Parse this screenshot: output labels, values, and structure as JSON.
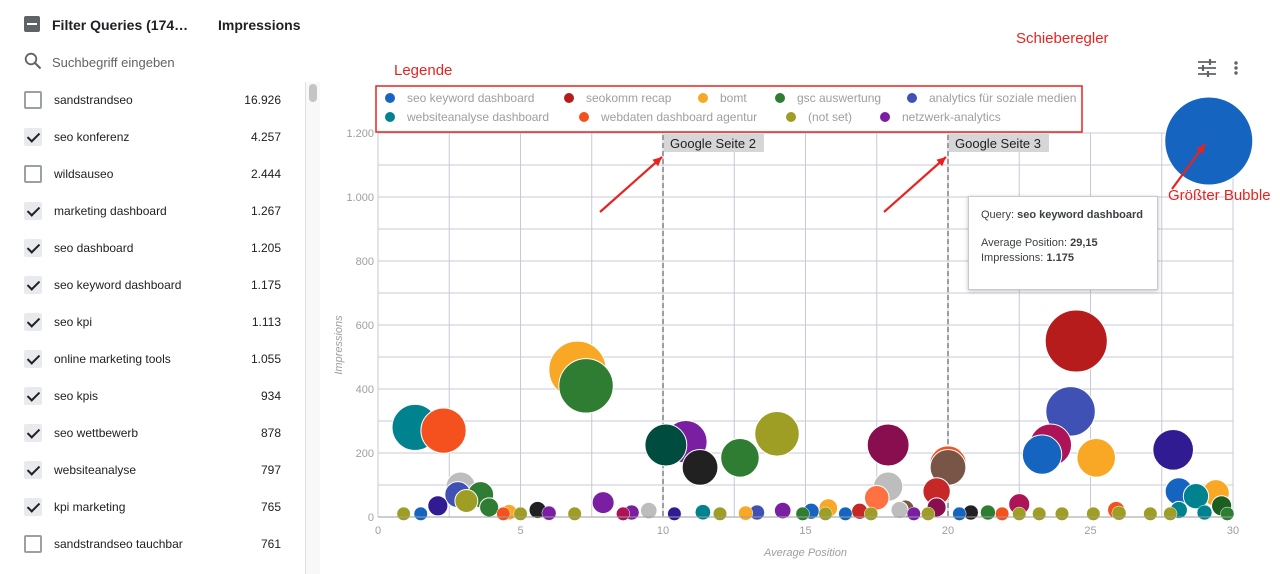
{
  "panel": {
    "title": "Filter Queries (174…",
    "metric_header": "Impressions",
    "search_placeholder": "Suchbegriff eingeben",
    "rows": [
      {
        "label": "sandstrandseo",
        "value": "16.926",
        "checked": false
      },
      {
        "label": "seo konferenz",
        "value": "4.257",
        "checked": true
      },
      {
        "label": "wildsauseo",
        "value": "2.444",
        "checked": false
      },
      {
        "label": "marketing dashboard",
        "value": "1.267",
        "checked": true
      },
      {
        "label": "seo dashboard",
        "value": "1.205",
        "checked": true
      },
      {
        "label": "seo keyword dashboard",
        "value": "1.175",
        "checked": true
      },
      {
        "label": "seo kpi",
        "value": "1.113",
        "checked": true
      },
      {
        "label": "online marketing tools",
        "value": "1.055",
        "checked": true
      },
      {
        "label": "seo kpis",
        "value": "934",
        "checked": true
      },
      {
        "label": "seo wettbewerb",
        "value": "878",
        "checked": true
      },
      {
        "label": "websiteanalyse",
        "value": "797",
        "checked": true
      },
      {
        "label": "kpi marketing",
        "value": "765",
        "checked": true
      },
      {
        "label": "sandstrandseo tauchbar",
        "value": "761",
        "checked": false
      }
    ]
  },
  "annotations": {
    "legend": "Legende",
    "slider": "Schieberegler",
    "biggest_bubble": "Größter Bubble"
  },
  "tooltip": {
    "query_label": "Query:",
    "query_value": "seo keyword dashboard",
    "position_label": "Average Position:",
    "position_value": "29,15",
    "impressions_label": "Impressions:",
    "impressions_value": "1.175"
  },
  "icons": {
    "search": "search-icon",
    "tune": "tune-icon",
    "more": "more-vert-icon"
  },
  "colors": {
    "accent": "#e8231f"
  },
  "chart_data": {
    "type": "scatter",
    "xlabel": "Average Position",
    "ylabel": "Impressions",
    "xlim": [
      0,
      30
    ],
    "ylim": [
      0,
      1200
    ],
    "xticks": [
      {
        "v": 0,
        "t": "0"
      },
      {
        "v": 5,
        "t": "5"
      },
      {
        "v": 10,
        "t": "10"
      },
      {
        "v": 15,
        "t": "15"
      },
      {
        "v": 20,
        "t": "20"
      },
      {
        "v": 25,
        "t": "25"
      },
      {
        "v": 30,
        "t": "30"
      }
    ],
    "yticks": [
      {
        "v": 0,
        "t": "0"
      },
      {
        "v": 200,
        "t": "200"
      },
      {
        "v": 400,
        "t": "400"
      },
      {
        "v": 600,
        "t": "600"
      },
      {
        "v": 800,
        "t": "800"
      },
      {
        "v": 1000,
        "t": "1.000"
      },
      {
        "v": 1200,
        "t": "1.200"
      }
    ],
    "grid": true,
    "legend_position": "top",
    "legend": [
      {
        "name": "seo keyword dashboard",
        "color": "#1565c0"
      },
      {
        "name": "seokomm recap",
        "color": "#b71c1c"
      },
      {
        "name": "bomt",
        "color": "#f9a825"
      },
      {
        "name": "gsc auswertung",
        "color": "#2e7d32"
      },
      {
        "name": "analytics für soziale medien",
        "color": "#3f51b5"
      },
      {
        "name": "websiteanalyse dashboard",
        "color": "#00838f"
      },
      {
        "name": "webdaten dashboard agentur",
        "color": "#f4511e"
      },
      {
        "name": "(not set)",
        "color": "#9e9d24"
      },
      {
        "name": "netzwerk-analytics",
        "color": "#7b1fa2"
      }
    ],
    "reference_lines": [
      {
        "x": 10,
        "label": "Google Seite 2"
      },
      {
        "x": 20,
        "label": "Google Seite 3"
      }
    ],
    "points": [
      {
        "x": 29.15,
        "y": 1175,
        "z": 1175,
        "c": "#1565c0"
      },
      {
        "x": 24.5,
        "y": 550,
        "z": 550,
        "c": "#b71c1c"
      },
      {
        "x": 7.0,
        "y": 460,
        "z": 460,
        "c": "#f9a825"
      },
      {
        "x": 7.3,
        "y": 410,
        "z": 410,
        "c": "#2e7d32"
      },
      {
        "x": 24.3,
        "y": 330,
        "z": 330,
        "c": "#3f51b5"
      },
      {
        "x": 1.3,
        "y": 280,
        "z": 280,
        "c": "#00838f"
      },
      {
        "x": 2.3,
        "y": 270,
        "z": 270,
        "c": "#f4511e"
      },
      {
        "x": 14.0,
        "y": 260,
        "z": 260,
        "c": "#9e9d24"
      },
      {
        "x": 10.8,
        "y": 235,
        "z": 235,
        "c": "#7b1fa2"
      },
      {
        "x": 10.1,
        "y": 225,
        "z": 225,
        "c": "#004d40"
      },
      {
        "x": 17.9,
        "y": 225,
        "z": 225,
        "c": "#880e4f"
      },
      {
        "x": 23.6,
        "y": 225,
        "z": 225,
        "c": "#ad1457"
      },
      {
        "x": 27.9,
        "y": 210,
        "z": 210,
        "c": "#311b92"
      },
      {
        "x": 23.3,
        "y": 195,
        "z": 195,
        "c": "#1565c0"
      },
      {
        "x": 25.2,
        "y": 185,
        "z": 185,
        "c": "#f9a825"
      },
      {
        "x": 12.7,
        "y": 185,
        "z": 185,
        "c": "#2e7d32"
      },
      {
        "x": 20.0,
        "y": 165,
        "z": 165,
        "c": "#f4511e"
      },
      {
        "x": 20.0,
        "y": 155,
        "z": 155,
        "c": "#795548"
      },
      {
        "x": 11.3,
        "y": 155,
        "z": 155,
        "c": "#212121"
      },
      {
        "x": 17.9,
        "y": 95,
        "z": 95,
        "c": "#bdbdbd"
      },
      {
        "x": 2.9,
        "y": 95,
        "z": 95,
        "c": "#bdbdbd"
      },
      {
        "x": 19.6,
        "y": 80,
        "z": 80,
        "c": "#c62828"
      },
      {
        "x": 28.1,
        "y": 80,
        "z": 80,
        "c": "#1565c0"
      },
      {
        "x": 29.4,
        "y": 75,
        "z": 75,
        "c": "#f9a825"
      },
      {
        "x": 2.8,
        "y": 70,
        "z": 70,
        "c": "#3f51b5"
      },
      {
        "x": 3.6,
        "y": 70,
        "z": 70,
        "c": "#2e7d32"
      },
      {
        "x": 28.7,
        "y": 65,
        "z": 65,
        "c": "#00838f"
      },
      {
        "x": 17.5,
        "y": 60,
        "z": 60,
        "c": "#ff7043"
      },
      {
        "x": 3.1,
        "y": 50,
        "z": 50,
        "c": "#9e9d24"
      },
      {
        "x": 7.9,
        "y": 45,
        "z": 45,
        "c": "#7b1fa2"
      },
      {
        "x": 22.5,
        "y": 40,
        "z": 40,
        "c": "#ad1457"
      },
      {
        "x": 2.1,
        "y": 35,
        "z": 35,
        "c": "#311b92"
      },
      {
        "x": 29.6,
        "y": 35,
        "z": 35,
        "c": "#1b5e20"
      },
      {
        "x": 3.9,
        "y": 30,
        "z": 30,
        "c": "#2e7d32"
      },
      {
        "x": 19.6,
        "y": 30,
        "z": 30,
        "c": "#880e4f"
      },
      {
        "x": 15.8,
        "y": 28,
        "z": 28,
        "c": "#f9a825"
      },
      {
        "x": 18.5,
        "y": 25,
        "z": 25,
        "c": "#795548"
      },
      {
        "x": 18.3,
        "y": 22,
        "z": 22,
        "c": "#bdbdbd"
      },
      {
        "x": 28.1,
        "y": 22,
        "z": 22,
        "c": "#00838f"
      },
      {
        "x": 5.6,
        "y": 22,
        "z": 22,
        "c": "#212121"
      },
      {
        "x": 25.9,
        "y": 22,
        "z": 22,
        "c": "#f4511e"
      },
      {
        "x": 14.2,
        "y": 20,
        "z": 20,
        "c": "#7b1fa2"
      },
      {
        "x": 9.5,
        "y": 20,
        "z": 20,
        "c": "#bdbdbd"
      },
      {
        "x": 16.9,
        "y": 18,
        "z": 18,
        "c": "#c62828"
      },
      {
        "x": 15.2,
        "y": 18,
        "z": 18,
        "c": "#1565c0"
      },
      {
        "x": 11.4,
        "y": 15,
        "z": 15,
        "c": "#00838f"
      },
      {
        "x": 4.6,
        "y": 15,
        "z": 15,
        "c": "#f9a825"
      },
      {
        "x": 8.9,
        "y": 14,
        "z": 14,
        "c": "#7b1fa2"
      },
      {
        "x": 13.3,
        "y": 14,
        "z": 14,
        "c": "#3f51b5"
      },
      {
        "x": 20.8,
        "y": 14,
        "z": 14,
        "c": "#212121"
      },
      {
        "x": 21.4,
        "y": 14,
        "z": 14,
        "c": "#2e7d32"
      },
      {
        "x": 29.0,
        "y": 14,
        "z": 14,
        "c": "#00838f"
      },
      {
        "x": 12.9,
        "y": 12,
        "z": 12,
        "c": "#f9a825"
      },
      {
        "x": 6.0,
        "y": 12,
        "z": 12,
        "c": "#7b1fa2"
      },
      {
        "x": 26.0,
        "y": 12,
        "z": 12,
        "c": "#9e9d24"
      },
      {
        "x": 0.9,
        "y": 10,
        "z": 10,
        "c": "#9e9d24"
      },
      {
        "x": 1.5,
        "y": 10,
        "z": 10,
        "c": "#1565c0"
      },
      {
        "x": 4.4,
        "y": 10,
        "z": 10,
        "c": "#f4511e"
      },
      {
        "x": 5.0,
        "y": 10,
        "z": 10,
        "c": "#9e9d24"
      },
      {
        "x": 6.9,
        "y": 10,
        "z": 10,
        "c": "#9e9d24"
      },
      {
        "x": 8.6,
        "y": 10,
        "z": 10,
        "c": "#ad1457"
      },
      {
        "x": 10.4,
        "y": 10,
        "z": 10,
        "c": "#311b92"
      },
      {
        "x": 12.0,
        "y": 10,
        "z": 10,
        "c": "#9e9d24"
      },
      {
        "x": 14.9,
        "y": 10,
        "z": 10,
        "c": "#2e7d32"
      },
      {
        "x": 15.7,
        "y": 10,
        "z": 10,
        "c": "#9e9d24"
      },
      {
        "x": 16.4,
        "y": 10,
        "z": 10,
        "c": "#1565c0"
      },
      {
        "x": 17.3,
        "y": 10,
        "z": 10,
        "c": "#9e9d24"
      },
      {
        "x": 18.8,
        "y": 10,
        "z": 10,
        "c": "#7b1fa2"
      },
      {
        "x": 19.3,
        "y": 10,
        "z": 10,
        "c": "#9e9d24"
      },
      {
        "x": 20.4,
        "y": 10,
        "z": 10,
        "c": "#1565c0"
      },
      {
        "x": 21.9,
        "y": 10,
        "z": 10,
        "c": "#f4511e"
      },
      {
        "x": 22.5,
        "y": 10,
        "z": 10,
        "c": "#9e9d24"
      },
      {
        "x": 23.2,
        "y": 10,
        "z": 10,
        "c": "#9e9d24"
      },
      {
        "x": 24.0,
        "y": 10,
        "z": 10,
        "c": "#9e9d24"
      },
      {
        "x": 25.1,
        "y": 10,
        "z": 10,
        "c": "#9e9d24"
      },
      {
        "x": 27.1,
        "y": 10,
        "z": 10,
        "c": "#9e9d24"
      },
      {
        "x": 27.8,
        "y": 10,
        "z": 10,
        "c": "#9e9d24"
      },
      {
        "x": 29.8,
        "y": 10,
        "z": 10,
        "c": "#2e7d32"
      }
    ]
  }
}
